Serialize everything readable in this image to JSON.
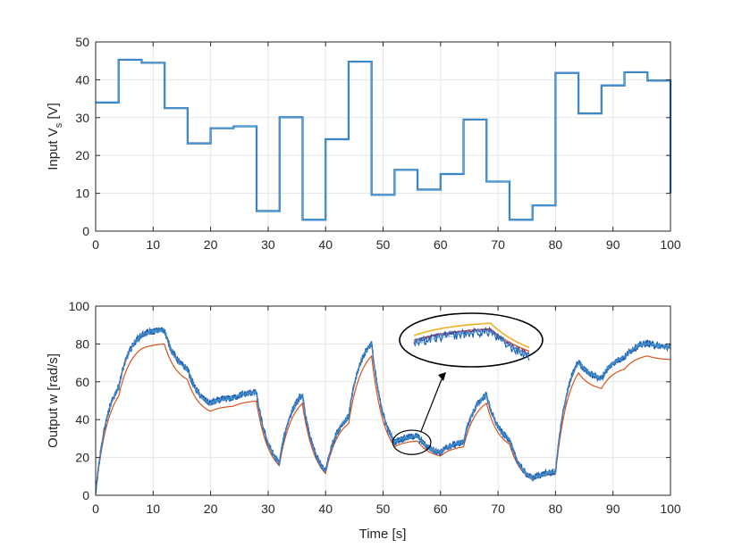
{
  "colors": {
    "blue": "#1f5fb0",
    "light_blue": "#4fa6d8",
    "red": "#d95319",
    "yellow": "#edb120",
    "purple": "#7e2f8e",
    "axis": "#262626",
    "grid": "#e6e6e6"
  },
  "chart_data": [
    {
      "type": "line",
      "title": "",
      "xlabel": "",
      "ylabel": "Input V",
      "ylabel_subscript": "s",
      "ylabel_unit": "[V]",
      "xlim": [
        0,
        100
      ],
      "ylim": [
        0,
        50
      ],
      "xticks": [
        "0",
        "10",
        "20",
        "30",
        "40",
        "50",
        "60",
        "70",
        "80",
        "90",
        "100"
      ],
      "yticks": [
        "0",
        "10",
        "20",
        "30",
        "40",
        "50"
      ],
      "grid": true,
      "step_input": [
        {
          "from": 0,
          "to": 4,
          "value": 34
        },
        {
          "from": 4,
          "to": 8,
          "value": 45.3
        },
        {
          "from": 8,
          "to": 12,
          "value": 44.5
        },
        {
          "from": 12,
          "to": 16,
          "value": 32.5
        },
        {
          "from": 16,
          "to": 20,
          "value": 23.2
        },
        {
          "from": 20,
          "to": 24,
          "value": 27.2
        },
        {
          "from": 24,
          "to": 28,
          "value": 27.7
        },
        {
          "from": 28,
          "to": 32,
          "value": 5.3
        },
        {
          "from": 32,
          "to": 36,
          "value": 30.1
        },
        {
          "from": 36,
          "to": 40,
          "value": 3.0
        },
        {
          "from": 40,
          "to": 44,
          "value": 24.3
        },
        {
          "from": 44,
          "to": 48,
          "value": 44.8
        },
        {
          "from": 48,
          "to": 52,
          "value": 9.6
        },
        {
          "from": 52,
          "to": 56,
          "value": 16.2
        },
        {
          "from": 56,
          "to": 60,
          "value": 11.0
        },
        {
          "from": 60,
          "to": 64,
          "value": 15.1
        },
        {
          "from": 64,
          "to": 68,
          "value": 29.5
        },
        {
          "from": 68,
          "to": 72,
          "value": 13.1
        },
        {
          "from": 72,
          "to": 76,
          "value": 3.0
        },
        {
          "from": 76,
          "to": 80,
          "value": 6.8
        },
        {
          "from": 80,
          "to": 84,
          "value": 41.8
        },
        {
          "from": 84,
          "to": 88,
          "value": 31.1
        },
        {
          "from": 88,
          "to": 92,
          "value": 38.5
        },
        {
          "from": 92,
          "to": 96,
          "value": 42.0
        },
        {
          "from": 96,
          "to": 100,
          "value": 39.8
        }
      ],
      "final_drop_value": 10
    },
    {
      "type": "line",
      "title": "",
      "xlabel": "Time [s]",
      "ylabel": "Output w [rad/s]",
      "xlim": [
        0,
        100
      ],
      "ylim": [
        0,
        100
      ],
      "xticks": [
        "0",
        "10",
        "20",
        "30",
        "40",
        "50",
        "60",
        "70",
        "80",
        "90",
        "100"
      ],
      "yticks": [
        "0",
        "20",
        "40",
        "60",
        "80",
        "100"
      ],
      "grid": true,
      "response_segments": [
        {
          "from": 0,
          "to": 4,
          "target": 68,
          "start": 0
        },
        {
          "from": 4,
          "to": 8,
          "target": 90
        },
        {
          "from": 8,
          "to": 12,
          "target": 88
        },
        {
          "from": 12,
          "to": 16,
          "target": 63
        },
        {
          "from": 16,
          "to": 20,
          "target": 45
        },
        {
          "from": 20,
          "to": 24,
          "target": 52
        },
        {
          "from": 24,
          "to": 28,
          "target": 55
        },
        {
          "from": 28,
          "to": 32,
          "target": 10
        },
        {
          "from": 32,
          "to": 36,
          "target": 60
        },
        {
          "from": 36,
          "to": 40,
          "target": 5
        },
        {
          "from": 40,
          "to": 44,
          "target": 47
        },
        {
          "from": 44,
          "to": 48,
          "target": 88
        },
        {
          "from": 48,
          "to": 52,
          "target": 18
        },
        {
          "from": 52,
          "to": 56,
          "target": 32
        },
        {
          "from": 56,
          "to": 60,
          "target": 21
        },
        {
          "from": 60,
          "to": 64,
          "target": 29
        },
        {
          "from": 64,
          "to": 68,
          "target": 58
        },
        {
          "from": 68,
          "to": 72,
          "target": 25
        },
        {
          "from": 72,
          "to": 76,
          "target": 5
        },
        {
          "from": 76,
          "to": 80,
          "target": 13
        },
        {
          "from": 80,
          "to": 84,
          "target": 82
        },
        {
          "from": 84,
          "to": 88,
          "target": 60
        },
        {
          "from": 88,
          "to": 92,
          "target": 75
        },
        {
          "from": 92,
          "to": 96,
          "target": 82
        },
        {
          "from": 96,
          "to": 100,
          "target": 78
        }
      ],
      "time_constant": 2.2,
      "red_gain": 0.915,
      "zoom_region": {
        "x_from": 52,
        "x_to": 58,
        "y_from": 23,
        "y_to": 33
      },
      "noise_amplitude": 1.8
    }
  ]
}
